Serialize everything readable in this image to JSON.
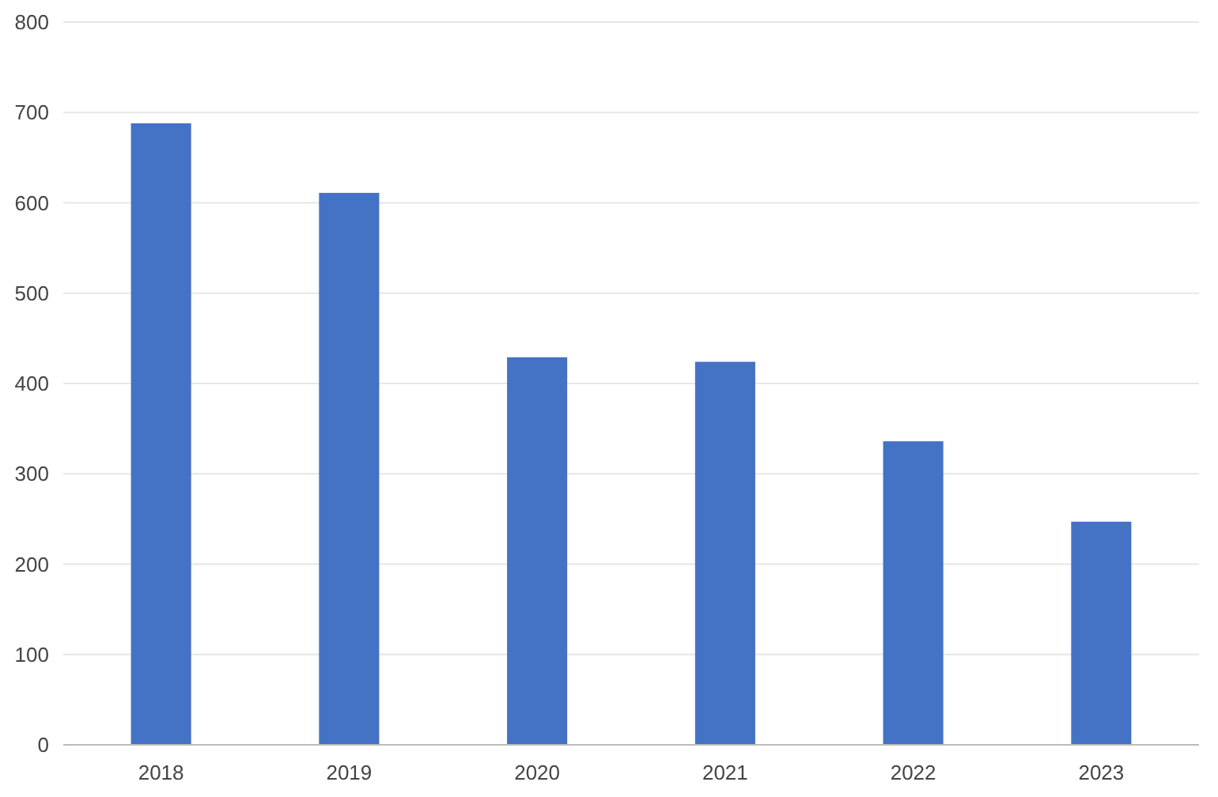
{
  "chart_data": {
    "type": "bar",
    "categories": [
      "2018",
      "2019",
      "2020",
      "2021",
      "2022",
      "2023"
    ],
    "values": [
      688,
      611,
      429,
      424,
      336,
      247
    ],
    "color": "#4472c4",
    "ylim": [
      0,
      800
    ],
    "yticks": [
      0,
      100,
      200,
      300,
      400,
      500,
      600,
      700,
      800
    ],
    "grid": "y"
  }
}
